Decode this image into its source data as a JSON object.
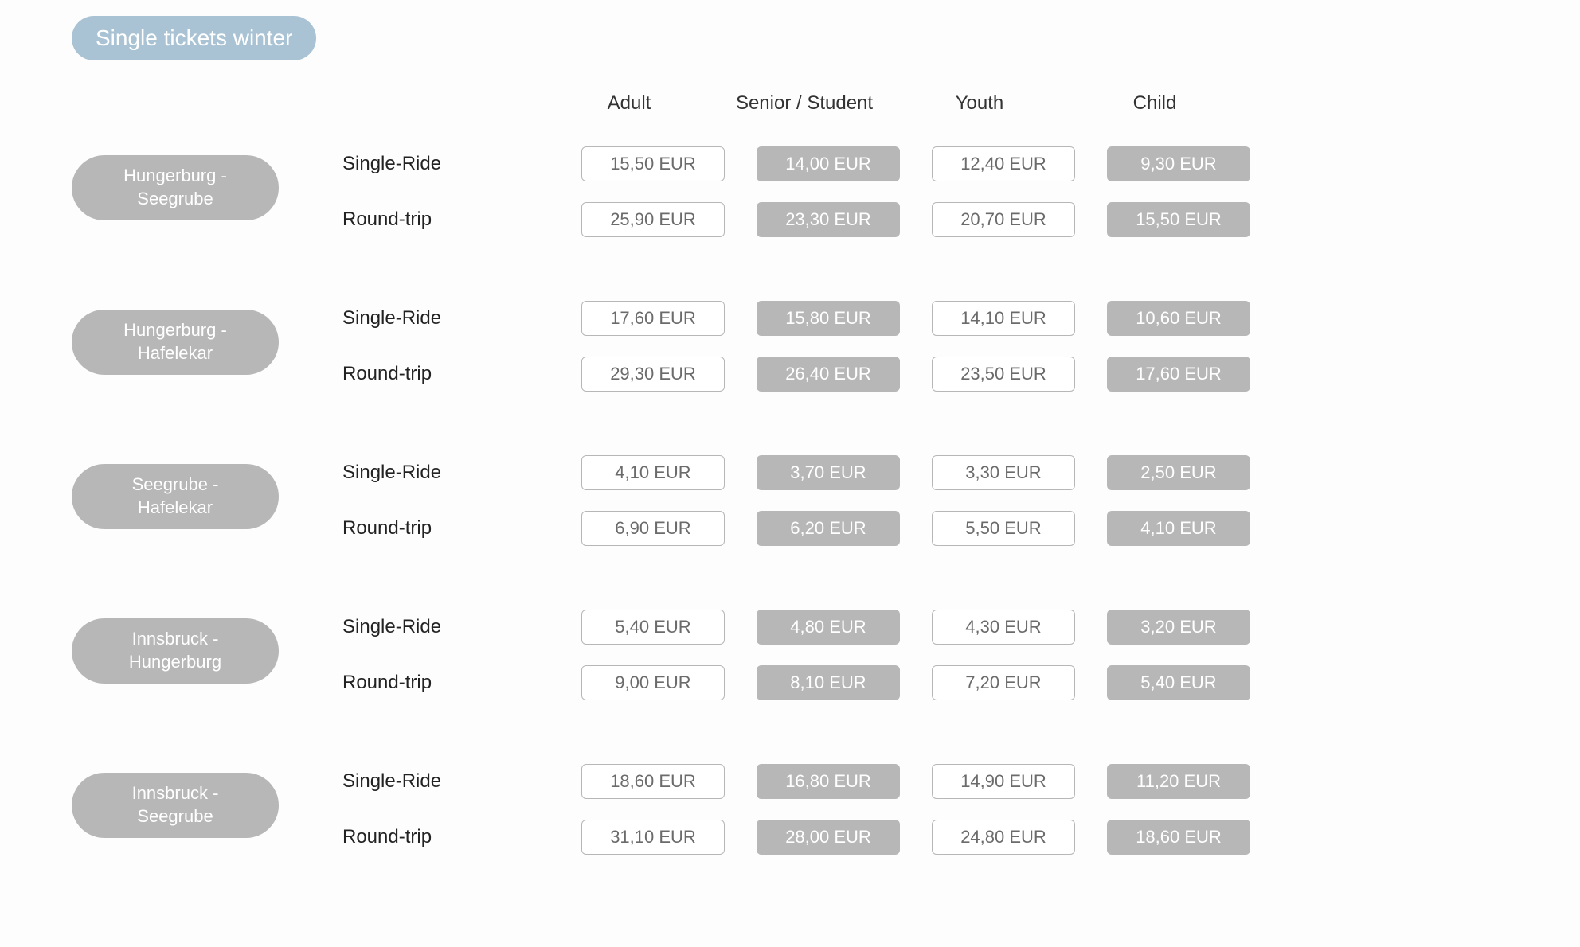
{
  "title": "Single tickets winter",
  "columns": [
    "Adult",
    "Senior / Student",
    "Youth",
    "Child"
  ],
  "column_style": [
    "outline",
    "filled",
    "outline",
    "filled"
  ],
  "ride_types": [
    "Single-Ride",
    "Round-trip"
  ],
  "currency_suffix": " EUR",
  "colors": {
    "title_pill": "#a9c3d4",
    "route_pill": "#b7b7b7",
    "filled_box": "#b7b7b7",
    "outline_border": "#b7b7b7",
    "text_dark": "#333333",
    "text_light": "#ffffff",
    "outline_text": "#6b6b6b",
    "page_bg": "#fdfdfd"
  },
  "routes": [
    {
      "name": "Hungerburg - Seegrube",
      "lines": [
        "Hungerburg -",
        "Seegrube"
      ],
      "prices": {
        "Single-Ride": [
          "15,50",
          "14,00",
          "12,40",
          "9,30"
        ],
        "Round-trip": [
          "25,90",
          "23,30",
          "20,70",
          "15,50"
        ]
      }
    },
    {
      "name": "Hungerburg - Hafelekar",
      "lines": [
        "Hungerburg -",
        "Hafelekar"
      ],
      "prices": {
        "Single-Ride": [
          "17,60",
          "15,80",
          "14,10",
          "10,60"
        ],
        "Round-trip": [
          "29,30",
          "26,40",
          "23,50",
          "17,60"
        ]
      }
    },
    {
      "name": "Seegrube - Hafelekar",
      "lines": [
        "Seegrube -",
        "Hafelekar"
      ],
      "prices": {
        "Single-Ride": [
          "4,10",
          "3,70",
          "3,30",
          "2,50"
        ],
        "Round-trip": [
          "6,90",
          "6,20",
          "5,50",
          "4,10"
        ]
      }
    },
    {
      "name": "Innsbruck - Hungerburg",
      "lines": [
        "Innsbruck -",
        "Hungerburg"
      ],
      "prices": {
        "Single-Ride": [
          "5,40",
          "4,80",
          "4,30",
          "3,20"
        ],
        "Round-trip": [
          "9,00",
          "8,10",
          "7,20",
          "5,40"
        ]
      }
    },
    {
      "name": "Innsbruck - Seegrube",
      "lines": [
        "Innsbruck -",
        "Seegrube"
      ],
      "prices": {
        "Single-Ride": [
          "18,60",
          "16,80",
          "14,90",
          "11,20"
        ],
        "Round-trip": [
          "31,10",
          "28,00",
          "24,80",
          "18,60"
        ]
      }
    }
  ]
}
